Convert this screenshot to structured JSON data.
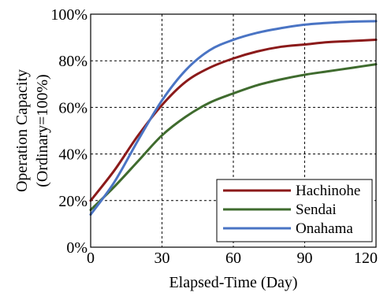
{
  "chart_data": {
    "type": "line",
    "title": "",
    "xlabel": "Elapsed-Time (Day)",
    "ylabel_lines": [
      "Operation Capacity",
      "(Ordinary=100%)"
    ],
    "xlim": [
      0,
      120
    ],
    "ylim": [
      0,
      100
    ],
    "x_ticks": [
      0,
      30,
      60,
      90,
      120
    ],
    "x_tick_labels": [
      "0",
      "30",
      "60",
      "90",
      "120"
    ],
    "y_ticks": [
      0,
      20,
      40,
      60,
      80,
      100
    ],
    "y_tick_labels": [
      "0%",
      "20%",
      "40%",
      "60%",
      "80%",
      "100%"
    ],
    "grid": true,
    "legend_position": "bottom-right",
    "series": [
      {
        "name": "Hachinohe",
        "color": "#8b1a1a",
        "x": [
          0,
          10,
          20,
          30,
          40,
          50,
          60,
          70,
          80,
          90,
          100,
          110,
          120
        ],
        "y": [
          20,
          33,
          48,
          61,
          71,
          77,
          81,
          84,
          86,
          87,
          88,
          88.5,
          89
        ]
      },
      {
        "name": "Sendai",
        "color": "#3f6b2e",
        "x": [
          0,
          10,
          20,
          30,
          40,
          50,
          60,
          70,
          80,
          90,
          100,
          110,
          120
        ],
        "y": [
          16,
          26,
          37,
          48,
          56,
          62,
          66,
          69.5,
          72,
          74,
          75.5,
          77,
          78.5
        ]
      },
      {
        "name": "Onahama",
        "color": "#4a74c4",
        "x": [
          0,
          10,
          20,
          30,
          40,
          50,
          60,
          70,
          80,
          90,
          100,
          110,
          120
        ],
        "y": [
          14,
          28,
          46,
          63,
          76,
          84.5,
          89,
          92,
          94,
          95.5,
          96.3,
          96.8,
          97
        ]
      }
    ]
  }
}
